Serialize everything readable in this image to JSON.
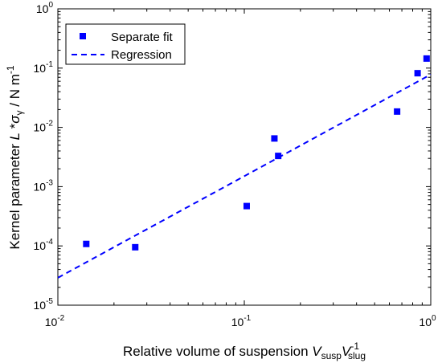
{
  "chart_data": {
    "type": "scatter",
    "x_scale": "log",
    "y_scale": "log",
    "xlim": [
      0.01,
      1
    ],
    "ylim": [
      1e-05,
      1
    ],
    "grid": false,
    "legend_position": "top-left",
    "xlabel": {
      "text": "Relative volume of suspension ",
      "v1": "V",
      "v1_sub": "susp",
      "v2": "V",
      "v2_sup": "-1",
      "v2_sub": "slug"
    },
    "ylabel": {
      "text": "Kernel parameter ",
      "italic_a": "L",
      "star": " *",
      "italic_b": "σ",
      "sub": "γ",
      "rest": " / N m",
      "sup": "-1"
    },
    "x_ticks": [
      {
        "base": "10",
        "exp": "-2"
      },
      {
        "base": "10",
        "exp": "-1"
      },
      {
        "base": "10",
        "exp": "0"
      }
    ],
    "y_ticks": [
      {
        "base": "10",
        "exp": "-5"
      },
      {
        "base": "10",
        "exp": "-4"
      },
      {
        "base": "10",
        "exp": "-3"
      },
      {
        "base": "10",
        "exp": "-2"
      },
      {
        "base": "10",
        "exp": "-1"
      },
      {
        "base": "10",
        "exp": "0"
      }
    ],
    "series": [
      {
        "name": "Separate fit",
        "kind": "scatter",
        "marker": "square",
        "color": "#0000ff",
        "points": [
          {
            "x": 0.0142,
            "y": 0.000108
          },
          {
            "x": 0.026,
            "y": 9.5e-05
          },
          {
            "x": 0.103,
            "y": 0.00047
          },
          {
            "x": 0.145,
            "y": 0.0065
          },
          {
            "x": 0.152,
            "y": 0.0033
          },
          {
            "x": 0.66,
            "y": 0.0185
          },
          {
            "x": 0.85,
            "y": 0.082
          },
          {
            "x": 0.95,
            "y": 0.145
          }
        ]
      },
      {
        "name": "Regression",
        "kind": "line",
        "style": "dashed",
        "color": "#0000ff",
        "points": [
          {
            "x": 0.01,
            "y": 2.9e-05
          },
          {
            "x": 1,
            "y": 0.078
          }
        ]
      }
    ]
  }
}
